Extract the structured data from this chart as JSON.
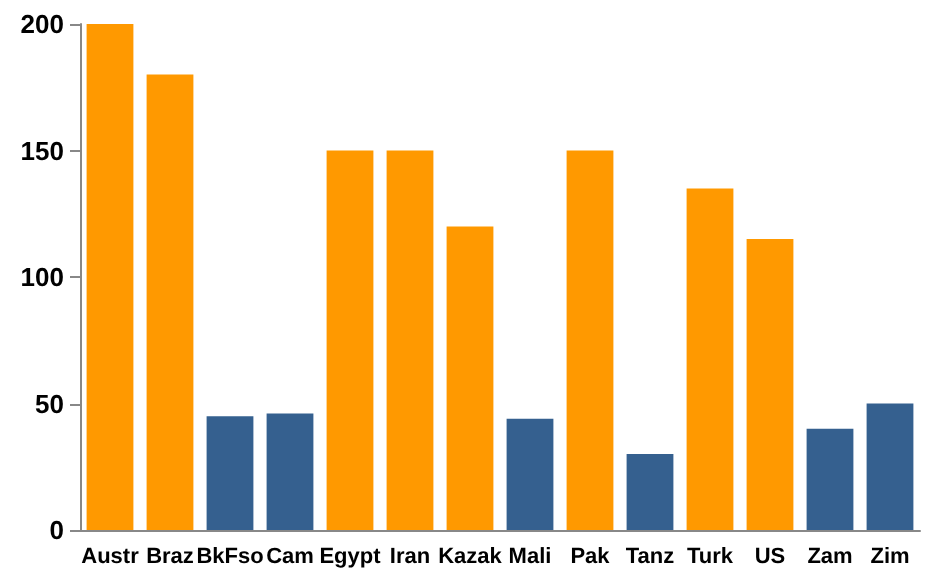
{
  "chart_data": {
    "type": "bar",
    "categories": [
      "Austr",
      "Braz",
      "BkFso",
      "Cam",
      "Egypt",
      "Iran",
      "Kazak",
      "Mali",
      "Pak",
      "Tanz",
      "Turk",
      "US",
      "Zam",
      "Zim"
    ],
    "values": [
      200,
      180,
      45,
      46,
      150,
      150,
      120,
      44,
      150,
      30,
      135,
      115,
      40,
      50
    ],
    "colors": [
      "#ff9900",
      "#ff9900",
      "#35608f",
      "#35608f",
      "#ff9900",
      "#ff9900",
      "#ff9900",
      "#35608f",
      "#ff9900",
      "#35608f",
      "#ff9900",
      "#ff9900",
      "#35608f",
      "#35608f"
    ],
    "ylim": [
      0,
      200
    ],
    "yticks": [
      0,
      50,
      100,
      150,
      200
    ],
    "grid": false
  }
}
